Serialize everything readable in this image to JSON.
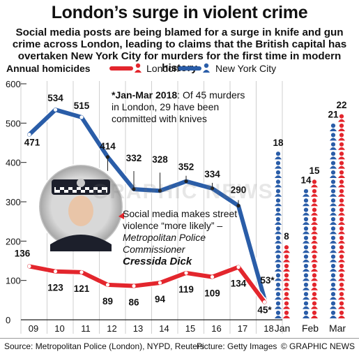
{
  "header": {
    "title": "London’s surge in violent crime",
    "subtitle": "Social media posts are being blamed for a surge in knife and gun crime across London, leading to claims that the British capital has overtaken New York City for murders for the first time in modern history"
  },
  "legend": {
    "heading": "Annual homicides",
    "london": "London",
    "nyc": "New York City"
  },
  "colors": {
    "london": "#e3262d",
    "nyc": "#2a5da8",
    "nyc_light": "#9dbce3",
    "axis": "#222222"
  },
  "note": {
    "bold": "*Jan-Mar 2018",
    "text": ": Of 45 murders in London, 29 have been committed with knives"
  },
  "quote": {
    "text": "Social media makes street violence “more likely” – ",
    "role": "Metropolitan Police Commissioner",
    "name": "Cressida Dick"
  },
  "watermark": "GRAPHIC NEWS",
  "footer": {
    "source": "Source: Metropolitan Police (London), NYPD, Reuters",
    "picture": "Picture: Getty Images",
    "brand": "© GRAPHIC NEWS"
  },
  "chart_data": [
    {
      "type": "line",
      "ylabel": "Annual homicides",
      "ylim": [
        0,
        600
      ],
      "yticks": [
        0,
        100,
        200,
        300,
        400,
        500,
        600
      ],
      "categories": [
        "09",
        "10",
        "11",
        "12",
        "13",
        "14",
        "15",
        "16",
        "17",
        "18"
      ],
      "series": [
        {
          "name": "London",
          "values": [
            136,
            123,
            121,
            89,
            86,
            94,
            119,
            109,
            134,
            45
          ],
          "labels": [
            "136",
            "123",
            "121",
            "89",
            "86",
            "94",
            "119",
            "109",
            "134",
            "45*"
          ]
        },
        {
          "name": "New York City",
          "values": [
            471,
            534,
            515,
            414,
            332,
            328,
            352,
            334,
            290,
            53
          ],
          "labels": [
            "471",
            "534",
            "515",
            "414",
            "332",
            "328",
            "352",
            "334",
            "290",
            "53*"
          ]
        }
      ],
      "grid": true
    },
    {
      "type": "bar",
      "categories": [
        "Jan",
        "Feb",
        "Mar"
      ],
      "series": [
        {
          "name": "New York City",
          "values": [
            18,
            14,
            21
          ]
        },
        {
          "name": "London",
          "values": [
            8,
            15,
            22
          ]
        }
      ]
    }
  ]
}
